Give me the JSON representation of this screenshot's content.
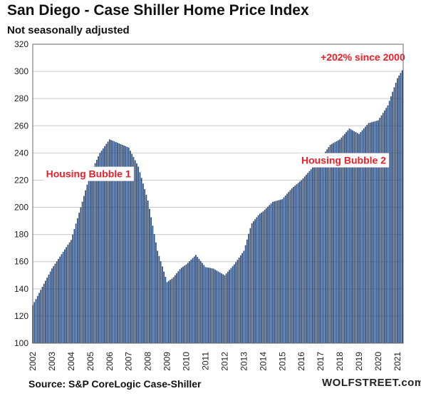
{
  "title": "San Diego - Case Shiller Home Price Index",
  "subtitle": "Not seasonally adjusted",
  "source": "Source: S&P CoreLogic Case-Shiller",
  "watermark": "WOLFSTREET.com",
  "chart_data": {
    "type": "bar",
    "title": "San Diego - Case Shiller Home Price Index",
    "subtitle": "Not seasonally adjusted",
    "xlabel": "",
    "ylabel": "",
    "ylim": [
      100,
      320
    ],
    "yticks": [
      100,
      120,
      140,
      160,
      180,
      200,
      220,
      240,
      260,
      280,
      300,
      320
    ],
    "xticks": [
      "2002",
      "2003",
      "2004",
      "2005",
      "2006",
      "2007",
      "2008",
      "2009",
      "2010",
      "2011",
      "2012",
      "2013",
      "2014",
      "2015",
      "2016",
      "2017",
      "2018",
      "2019",
      "2020",
      "2021"
    ],
    "grid": true,
    "bar_color": "#2f4f7f",
    "annotation_color": "#e8202a",
    "annotations": [
      {
        "text": "Housing Bubble 1",
        "x": "2004.9",
        "y": 222
      },
      {
        "text": "Housing Bubble 2",
        "x": "2018.2",
        "y": 232
      },
      {
        "text": "+202% since 2000",
        "x": "2019.2",
        "y": 308
      }
    ],
    "series": [
      {
        "name": "",
        "x": [
          2002.0,
          2003.0,
          2004.0,
          2004.5,
          2005.0,
          2005.5,
          2006.0,
          2006.5,
          2007.0,
          2007.5,
          2008.0,
          2008.5,
          2009.0,
          2009.3,
          2009.7,
          2010.0,
          2010.5,
          2011.0,
          2011.4,
          2012.0,
          2012.5,
          2013.0,
          2013.4,
          2013.8,
          2014.0,
          2014.5,
          2015.0,
          2015.5,
          2016.0,
          2016.5,
          2017.0,
          2017.5,
          2018.0,
          2018.5,
          2019.0,
          2019.5,
          2020.0,
          2020.5,
          2021.0,
          2021.3
        ],
        "values": [
          128,
          155,
          176,
          200,
          225,
          240,
          250,
          247,
          244,
          230,
          205,
          168,
          145,
          148,
          155,
          158,
          165,
          156,
          155,
          150,
          158,
          168,
          188,
          195,
          197,
          204,
          206,
          214,
          220,
          228,
          236,
          246,
          250,
          258,
          254,
          262,
          264,
          275,
          295,
          302
        ]
      }
    ]
  }
}
